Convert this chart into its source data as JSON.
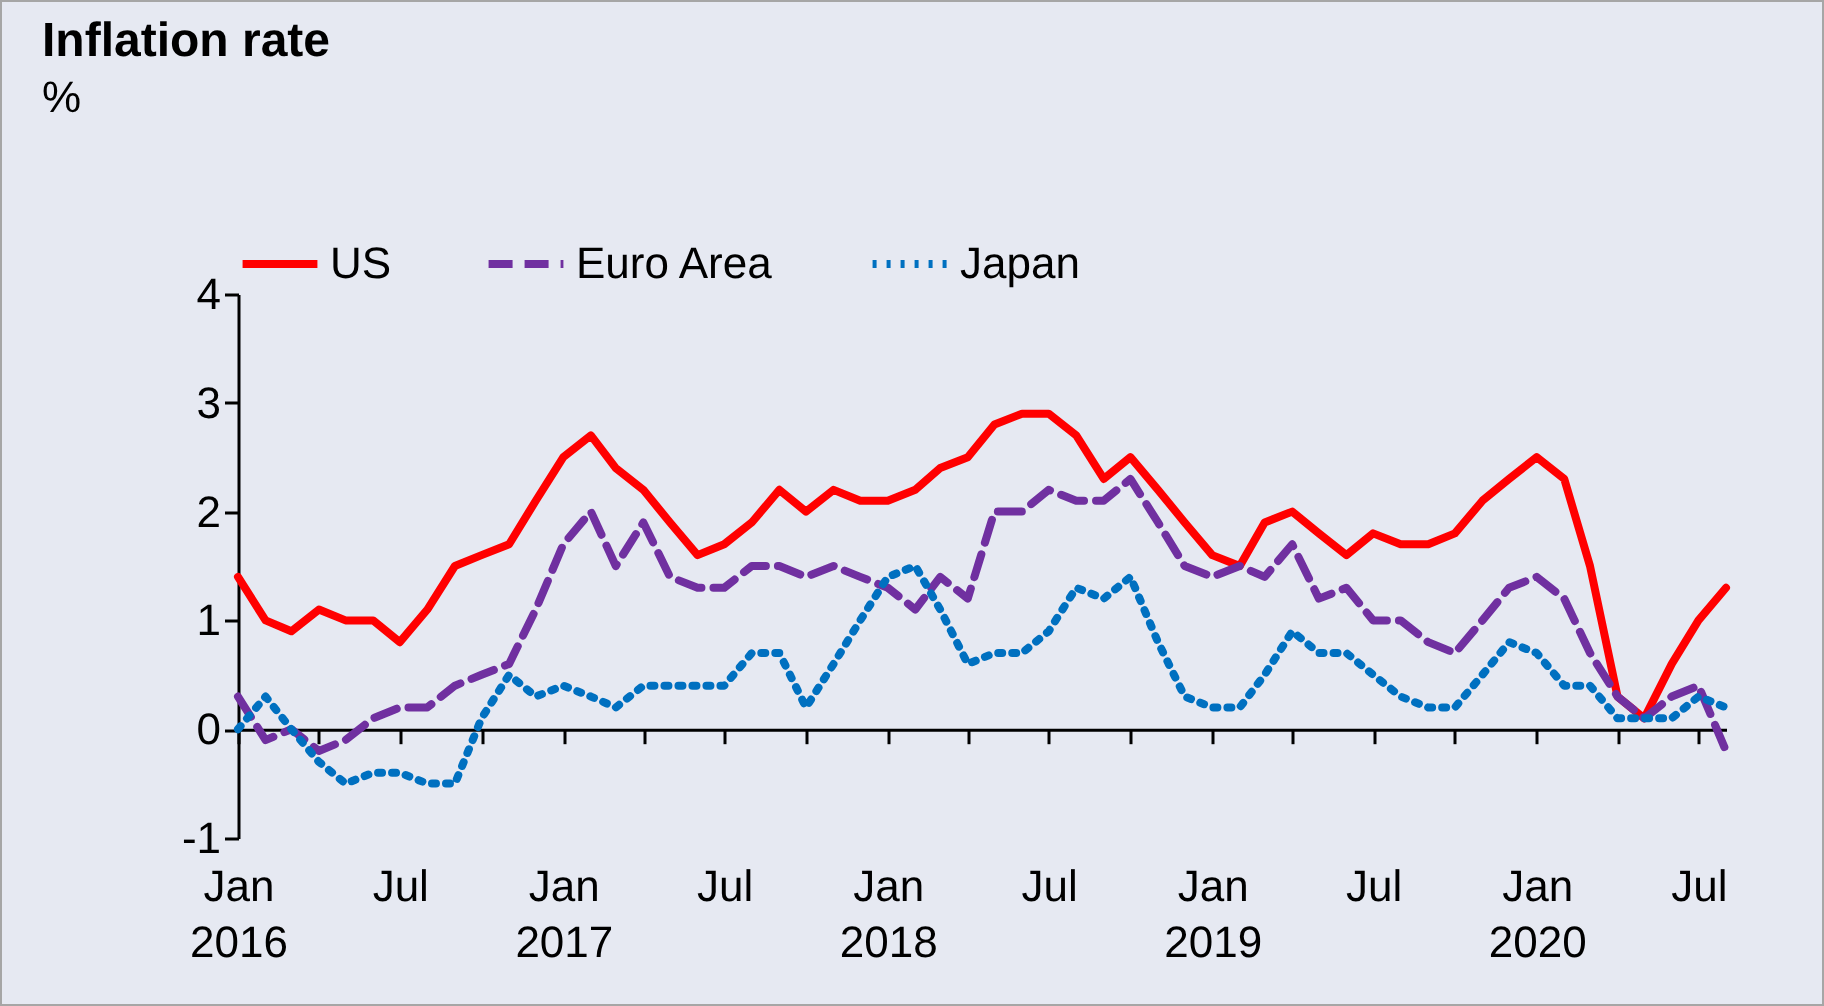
{
  "chart_data": {
    "type": "line",
    "title": "Inflation rate",
    "subtitle": "%",
    "x": [
      "2016-01",
      "2016-02",
      "2016-03",
      "2016-04",
      "2016-05",
      "2016-06",
      "2016-07",
      "2016-08",
      "2016-09",
      "2016-10",
      "2016-11",
      "2016-12",
      "2017-01",
      "2017-02",
      "2017-03",
      "2017-04",
      "2017-05",
      "2017-06",
      "2017-07",
      "2017-08",
      "2017-09",
      "2017-10",
      "2017-11",
      "2017-12",
      "2018-01",
      "2018-02",
      "2018-03",
      "2018-04",
      "2018-05",
      "2018-06",
      "2018-07",
      "2018-08",
      "2018-09",
      "2018-10",
      "2018-11",
      "2018-12",
      "2019-01",
      "2019-02",
      "2019-03",
      "2019-04",
      "2019-05",
      "2019-06",
      "2019-07",
      "2019-08",
      "2019-09",
      "2019-10",
      "2019-11",
      "2019-12",
      "2020-01",
      "2020-02",
      "2020-03",
      "2020-04",
      "2020-05",
      "2020-06",
      "2020-07",
      "2020-08"
    ],
    "series": [
      {
        "name": "US",
        "color": "#ff0000",
        "line_style": "solid",
        "values": [
          1.4,
          1.0,
          0.9,
          1.1,
          1.0,
          1.0,
          0.8,
          1.1,
          1.5,
          1.6,
          1.7,
          2.1,
          2.5,
          2.7,
          2.4,
          2.2,
          1.9,
          1.6,
          1.7,
          1.9,
          2.2,
          2.0,
          2.2,
          2.1,
          2.1,
          2.2,
          2.4,
          2.5,
          2.8,
          2.9,
          2.9,
          2.7,
          2.3,
          2.5,
          2.2,
          1.9,
          1.6,
          1.5,
          1.9,
          2.0,
          1.8,
          1.6,
          1.8,
          1.7,
          1.7,
          1.8,
          2.1,
          2.3,
          2.5,
          2.3,
          1.5,
          0.3,
          0.1,
          0.6,
          1.0,
          1.3
        ]
      },
      {
        "name": "Euro Area",
        "color": "#7030a0",
        "line_style": "dashed",
        "values": [
          0.3,
          -0.1,
          0.0,
          -0.2,
          -0.1,
          0.1,
          0.2,
          0.2,
          0.4,
          0.5,
          0.6,
          1.1,
          1.7,
          2.0,
          1.5,
          1.9,
          1.4,
          1.3,
          1.3,
          1.5,
          1.5,
          1.4,
          1.5,
          1.4,
          1.3,
          1.1,
          1.4,
          1.2,
          2.0,
          2.0,
          2.2,
          2.1,
          2.1,
          2.3,
          1.9,
          1.5,
          1.4,
          1.5,
          1.4,
          1.7,
          1.2,
          1.3,
          1.0,
          1.0,
          0.8,
          0.7,
          1.0,
          1.3,
          1.4,
          1.2,
          0.7,
          0.3,
          0.1,
          0.3,
          0.4,
          -0.2
        ]
      },
      {
        "name": "Japan",
        "color": "#0070c0",
        "line_style": "dotted",
        "values": [
          0.0,
          0.3,
          0.0,
          -0.3,
          -0.5,
          -0.4,
          -0.4,
          -0.5,
          -0.5,
          0.1,
          0.5,
          0.3,
          0.4,
          0.3,
          0.2,
          0.4,
          0.4,
          0.4,
          0.4,
          0.7,
          0.7,
          0.2,
          0.6,
          1.0,
          1.4,
          1.5,
          1.1,
          0.6,
          0.7,
          0.7,
          0.9,
          1.3,
          1.2,
          1.4,
          0.8,
          0.3,
          0.2,
          0.2,
          0.5,
          0.9,
          0.7,
          0.7,
          0.5,
          0.3,
          0.2,
          0.2,
          0.5,
          0.8,
          0.7,
          0.4,
          0.4,
          0.1,
          0.1,
          0.1,
          0.3,
          0.2
        ]
      }
    ],
    "xlim": [
      "2016-01",
      "2020-08"
    ],
    "xticks": [
      {
        "value": "2016-01",
        "label": "Jan 2016"
      },
      {
        "value": "2016-04",
        "label": null
      },
      {
        "value": "2016-07",
        "label": "Jul"
      },
      {
        "value": "2016-10",
        "label": null
      },
      {
        "value": "2017-01",
        "label": "Jan 2017"
      },
      {
        "value": "2017-04",
        "label": null
      },
      {
        "value": "2017-07",
        "label": "Jul"
      },
      {
        "value": "2017-10",
        "label": null
      },
      {
        "value": "2018-01",
        "label": "Jan 2018"
      },
      {
        "value": "2018-04",
        "label": null
      },
      {
        "value": "2018-07",
        "label": "Jul"
      },
      {
        "value": "2018-10",
        "label": null
      },
      {
        "value": "2019-01",
        "label": "Jan 2019"
      },
      {
        "value": "2019-04",
        "label": null
      },
      {
        "value": "2019-07",
        "label": "Jul"
      },
      {
        "value": "2019-10",
        "label": null
      },
      {
        "value": "2020-01",
        "label": "Jan 2020"
      },
      {
        "value": "2020-04",
        "label": null
      },
      {
        "value": "2020-07",
        "label": "Jul"
      }
    ],
    "ylim": [
      -1,
      4
    ],
    "yticks": [
      -1,
      0,
      1,
      2,
      3,
      4
    ],
    "legend": "top",
    "marker": "none"
  }
}
